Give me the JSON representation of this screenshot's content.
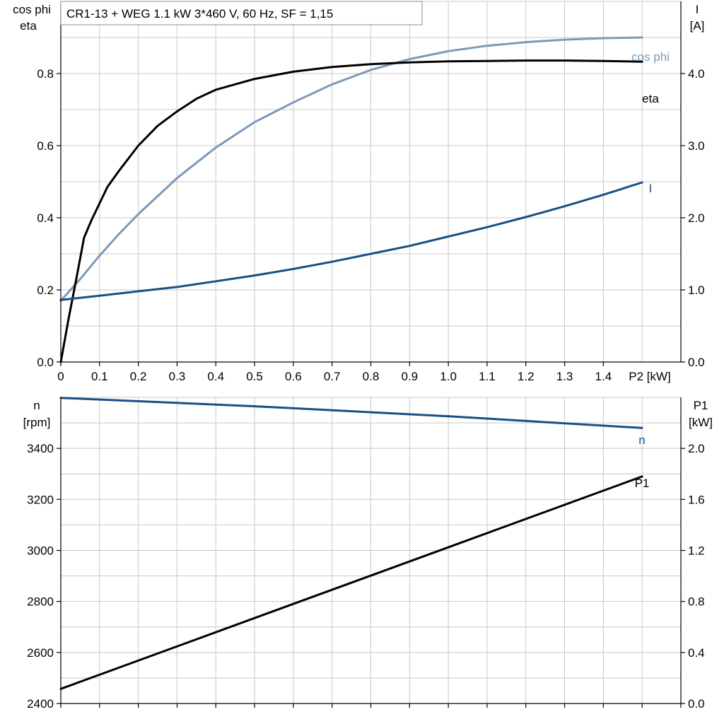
{
  "title": "CR1-13 + WEG   1.1 kW   3*460 V, 60 Hz, SF = 1,15",
  "colors": {
    "eta": "#000000",
    "cos_phi": "#7b9ab8",
    "I": "#1a4f82",
    "n": "#1a4f82",
    "P1": "#000000",
    "grid": "#c8c8c8"
  },
  "chart_data": [
    {
      "type": "line",
      "name": "upper",
      "x_axis": {
        "label": "P2 [kW]",
        "range": [
          0,
          1.6
        ],
        "ticks": [
          0,
          0.1,
          0.2,
          0.3,
          0.4,
          0.5,
          0.6,
          0.7,
          0.8,
          0.9,
          1.0,
          1.1,
          1.2,
          1.3,
          1.4
        ],
        "tick_labels": [
          "0",
          "0.1",
          "0.2",
          "0.3",
          "0.4",
          "0.5",
          "0.6",
          "0.7",
          "0.8",
          "0.9",
          "1.0",
          "1.1",
          "1.2",
          "1.3",
          "1.4"
        ]
      },
      "left_axis": {
        "label_lines": [
          "cos phi",
          "eta"
        ],
        "range": [
          0,
          1.0
        ],
        "ticks": [
          0,
          0.2,
          0.4,
          0.6,
          0.8
        ],
        "tick_labels": [
          "0.0",
          "0.2",
          "0.4",
          "0.6",
          "0.8"
        ]
      },
      "right_axis": {
        "label_lines": [
          "I",
          "[A]"
        ],
        "range": [
          0,
          5.0
        ],
        "ticks": [
          0,
          1,
          2,
          3,
          4
        ],
        "tick_labels": [
          "0.0",
          "1.0",
          "2.0",
          "3.0",
          "4.0"
        ]
      },
      "grid": true,
      "series": [
        {
          "name": "cos phi",
          "axis": "left",
          "color": "#7b9ab8",
          "x": [
            0,
            0.05,
            0.1,
            0.15,
            0.2,
            0.3,
            0.4,
            0.5,
            0.6,
            0.7,
            0.8,
            0.9,
            1.0,
            1.1,
            1.2,
            1.3,
            1.4,
            1.5
          ],
          "y": [
            0.17,
            0.23,
            0.295,
            0.355,
            0.41,
            0.51,
            0.595,
            0.665,
            0.72,
            0.77,
            0.81,
            0.84,
            0.862,
            0.877,
            0.887,
            0.894,
            0.898,
            0.9
          ]
        },
        {
          "name": "eta",
          "axis": "left",
          "color": "#000000",
          "x": [
            0,
            0.02,
            0.04,
            0.06,
            0.08,
            0.1,
            0.12,
            0.15,
            0.2,
            0.25,
            0.3,
            0.35,
            0.4,
            0.5,
            0.6,
            0.7,
            0.8,
            0.9,
            1.0,
            1.1,
            1.2,
            1.3,
            1.4,
            1.5
          ],
          "y": [
            0.0,
            0.12,
            0.23,
            0.345,
            0.395,
            0.44,
            0.485,
            0.53,
            0.6,
            0.655,
            0.695,
            0.73,
            0.755,
            0.785,
            0.805,
            0.818,
            0.826,
            0.831,
            0.834,
            0.835,
            0.836,
            0.836,
            0.835,
            0.833
          ]
        },
        {
          "name": "I",
          "axis": "right",
          "color": "#1a4f82",
          "x": [
            0,
            0.1,
            0.2,
            0.3,
            0.4,
            0.5,
            0.6,
            0.7,
            0.8,
            0.9,
            1.0,
            1.1,
            1.2,
            1.3,
            1.4,
            1.5
          ],
          "y": [
            0.86,
            0.92,
            0.98,
            1.04,
            1.12,
            1.2,
            1.29,
            1.39,
            1.5,
            1.61,
            1.74,
            1.87,
            2.01,
            2.16,
            2.32,
            2.49
          ]
        }
      ]
    },
    {
      "type": "line",
      "name": "lower",
      "x_axis": {
        "range": [
          0,
          1.6
        ],
        "ticks": [
          0,
          0.1,
          0.2,
          0.3,
          0.4,
          0.5,
          0.6,
          0.7,
          0.8,
          0.9,
          1.0,
          1.1,
          1.2,
          1.3,
          1.4,
          1.5,
          1.6
        ]
      },
      "left_axis": {
        "label_lines": [
          "n",
          "[rpm]"
        ],
        "range": [
          2400,
          3600
        ],
        "ticks": [
          2400,
          2600,
          2800,
          3000,
          3200,
          3400
        ],
        "tick_labels": [
          "2400",
          "2600",
          "2800",
          "3000",
          "3200",
          "3400"
        ]
      },
      "right_axis": {
        "label_lines": [
          "P1",
          "[kW]"
        ],
        "range": [
          0,
          2.4
        ],
        "ticks": [
          0,
          0.4,
          0.8,
          1.2,
          1.6,
          2.0
        ],
        "tick_labels": [
          "0.0",
          "0.4",
          "0.8",
          "1.2",
          "1.6",
          "2.0"
        ]
      },
      "grid": true,
      "series": [
        {
          "name": "n",
          "axis": "left",
          "color": "#1a4f82",
          "x": [
            0,
            0.5,
            1.0,
            1.5
          ],
          "y": [
            3598,
            3565,
            3526,
            3480
          ]
        },
        {
          "name": "P1",
          "axis": "right",
          "color": "#000000",
          "x": [
            0,
            1.5
          ],
          "y": [
            0.115,
            1.78
          ]
        }
      ]
    }
  ]
}
